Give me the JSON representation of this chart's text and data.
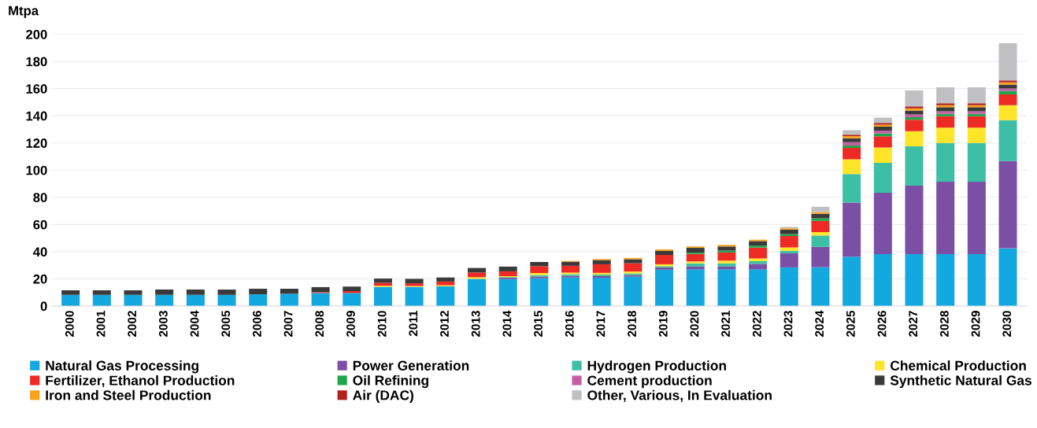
{
  "chart_data": {
    "type": "bar",
    "stacked": true,
    "ylabel": "Mtpa",
    "categories": [
      "2000",
      "2001",
      "2002",
      "2003",
      "2004",
      "2005",
      "2006",
      "2007",
      "2008",
      "2009",
      "2010",
      "2011",
      "2012",
      "2013",
      "2014",
      "2015",
      "2016",
      "2017",
      "2018",
      "2019",
      "2020",
      "2021",
      "2022",
      "2023",
      "2024",
      "2025",
      "2026",
      "2027",
      "2028",
      "2029",
      "2030"
    ],
    "ylim": [
      0,
      200
    ],
    "yticks": [
      0,
      20,
      40,
      60,
      80,
      100,
      120,
      140,
      160,
      180,
      200
    ],
    "grid": "y",
    "legend": "bottom",
    "series": [
      {
        "name": "Natural Gas Processing",
        "color": "#14a8e0",
        "values": [
          8.2,
          8.2,
          8.2,
          8.2,
          8.2,
          8.2,
          8.6,
          9,
          9.6,
          9.6,
          14.1,
          14.1,
          14.5,
          20,
          19.8,
          20.4,
          21,
          20.8,
          21.6,
          26.7,
          27,
          27,
          27,
          28.4,
          28.6,
          36.3,
          38.2,
          38.2,
          38.2,
          38.2,
          42.5
        ]
      },
      {
        "name": "Power Generation",
        "color": "#7b4fa3",
        "values": [
          null,
          null,
          null,
          null,
          null,
          null,
          null,
          null,
          null,
          null,
          null,
          null,
          null,
          null,
          1,
          1.2,
          1.2,
          1.2,
          1.2,
          1.6,
          2,
          2,
          4,
          10.4,
          14.9,
          39.8,
          45.1,
          50.4,
          53.2,
          53.2,
          64.2
        ]
      },
      {
        "name": "Hydrogen Production",
        "color": "#3dbfa5",
        "values": [
          null,
          null,
          null,
          null,
          null,
          null,
          null,
          null,
          null,
          null,
          null,
          null,
          null,
          null,
          0.5,
          1.2,
          1.2,
          1.2,
          1.2,
          1,
          2.4,
          2.4,
          2,
          1.8,
          8.4,
          21,
          22,
          28.9,
          28.6,
          28.6,
          30
        ]
      },
      {
        "name": "Chemical Production",
        "color": "#ffe52a",
        "values": [
          null,
          null,
          null,
          null,
          null,
          null,
          null,
          null,
          null,
          null,
          0.8,
          0.6,
          0.8,
          1.2,
          0.7,
          1.5,
          1.2,
          1.2,
          1.4,
          1.4,
          1.4,
          2,
          2,
          2.5,
          2.5,
          10.8,
          11.4,
          11.1,
          11.2,
          11.2,
          11.1
        ]
      },
      {
        "name": "Fertilizer, Ethanol Production",
        "color": "#ee2a24",
        "values": [
          null,
          null,
          null,
          null,
          null,
          null,
          null,
          null,
          0.6,
          1.4,
          2.2,
          2,
          2.7,
          3.5,
          3.5,
          5,
          5,
          6.3,
          6.1,
          6.9,
          5.5,
          6,
          8,
          8.4,
          8.2,
          8.4,
          8.2,
          8.4,
          8.4,
          8.4,
          7.9
        ]
      },
      {
        "name": "Oil Refining",
        "color": "#1fa64a",
        "values": [
          null,
          null,
          null,
          null,
          null,
          null,
          null,
          null,
          null,
          null,
          null,
          null,
          null,
          null,
          null,
          null,
          null,
          null,
          null,
          null,
          1,
          1.4,
          1.5,
          1.4,
          2,
          1.8,
          2,
          2,
          1.8,
          1.8,
          2.5
        ]
      },
      {
        "name": "Cement production",
        "color": "#c55fa5",
        "values": [
          null,
          null,
          null,
          null,
          null,
          null,
          null,
          null,
          null,
          null,
          null,
          null,
          null,
          null,
          null,
          null,
          null,
          null,
          null,
          null,
          null,
          null,
          null,
          null,
          null,
          2.5,
          2.2,
          2,
          1.9,
          1.9,
          1.8
        ]
      },
      {
        "name": "Synthetic Natural Gas",
        "color": "#3a3a3a",
        "values": [
          3.3,
          3.3,
          3.3,
          3.9,
          3.9,
          3.9,
          4.1,
          3.7,
          3.7,
          3.3,
          3.1,
          3.3,
          3,
          3.3,
          3.5,
          3.1,
          3,
          3.1,
          2.9,
          2.9,
          3.5,
          3,
          3.3,
          3.3,
          3.3,
          2.9,
          2.9,
          2.9,
          3,
          3,
          2.9
        ]
      },
      {
        "name": "Iron and Steel Production",
        "color": "#f7a21b",
        "values": [
          null,
          null,
          null,
          null,
          null,
          null,
          null,
          null,
          null,
          null,
          null,
          null,
          null,
          null,
          null,
          null,
          0.6,
          0.8,
          1,
          1.2,
          1,
          1.2,
          1,
          1,
          1.2,
          1.6,
          1.4,
          1.6,
          1.5,
          1.5,
          1.6
        ]
      },
      {
        "name": "Air (DAC)",
        "color": "#b0231f",
        "values": [
          null,
          null,
          null,
          null,
          null,
          null,
          null,
          null,
          null,
          null,
          null,
          null,
          null,
          null,
          null,
          null,
          null,
          null,
          null,
          null,
          null,
          null,
          null,
          null,
          null,
          1,
          1.4,
          1.4,
          1.4,
          1.4,
          1.5
        ]
      },
      {
        "name": "Other, Various, In Evaluation",
        "color": "#c0c0c2",
        "values": [
          null,
          null,
          null,
          null,
          null,
          null,
          null,
          null,
          null,
          null,
          null,
          null,
          null,
          null,
          null,
          null,
          null,
          null,
          null,
          null,
          null,
          null,
          null,
          1,
          3.9,
          3.3,
          3.9,
          11.7,
          11.8,
          11.8,
          27.3
        ]
      }
    ]
  }
}
